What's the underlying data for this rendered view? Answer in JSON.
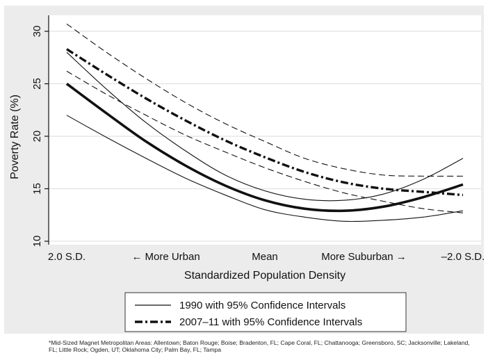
{
  "chart_data": {
    "type": "line",
    "xlabel": "Standardized Population Density",
    "ylabel": "Poverty Rate (%)",
    "x_tick_labels": [
      "2.0 S.D.",
      "← More Urban",
      "Mean",
      "More Suburban →",
      "–2.0 S.D."
    ],
    "x_tick_values": [
      2.0,
      1.0,
      0.0,
      -1.0,
      -2.0
    ],
    "xlim": [
      2.0,
      -2.0
    ],
    "ylim": [
      10,
      30
    ],
    "y_ticks": [
      10,
      15,
      20,
      25,
      30
    ],
    "grid": "horizontal",
    "x": [
      2.0,
      1.6,
      1.2,
      0.8,
      0.4,
      0.0,
      -0.4,
      -0.8,
      -1.2,
      -1.6,
      -2.0
    ],
    "series": [
      {
        "name": "1990 with 95% Confidence Intervals",
        "values": [
          25.0,
          22.2,
          19.5,
          17.2,
          15.3,
          13.9,
          13.1,
          12.9,
          13.3,
          14.2,
          15.4
        ],
        "style": "solid-thick"
      },
      {
        "values": [
          22.0,
          19.9,
          17.9,
          16.0,
          14.4,
          13.0,
          12.3,
          11.9,
          12.0,
          12.3,
          12.9
        ],
        "style": "solid-thin"
      },
      {
        "values": [
          28.0,
          24.5,
          21.3,
          18.6,
          16.3,
          14.8,
          14.0,
          13.9,
          14.5,
          15.9,
          17.9
        ],
        "style": "solid-thin"
      },
      {
        "name": "2007–11 with 95% Confidence Intervals",
        "values": [
          28.3,
          25.9,
          23.6,
          21.5,
          19.6,
          18.0,
          16.6,
          15.6,
          15.0,
          14.7,
          14.4
        ],
        "style": "dashdot-thick"
      },
      {
        "values": [
          26.2,
          24.0,
          22.0,
          20.1,
          18.5,
          17.0,
          15.7,
          14.6,
          13.8,
          13.1,
          12.7
        ],
        "style": "dashed-thin"
      },
      {
        "values": [
          30.7,
          28.0,
          25.5,
          23.2,
          21.2,
          19.5,
          17.9,
          16.9,
          16.3,
          16.2,
          16.2
        ],
        "style": "dashed-thin"
      }
    ],
    "legend": {
      "placement": "bottom",
      "entries": [
        {
          "label": "1990 with 95% Confidence Intervals",
          "style": "solid-thin"
        },
        {
          "label": "2007–11 with 95% Confidence Intervals",
          "style": "dashdot-thick"
        }
      ]
    },
    "footnote": "*Mid-Sized Magnet Metropolitan Areas: Allentown; Baton Rouge; Boise; Bradenton, FL; Cape Coral, FL; Chattanooga; Greensboro, SC; Jacksonville; Lakeland, FL; Little Rock; Ogden, UT; Oklahoma City; Palm Bay, FL; Tampa",
    "colors": {
      "background": "#ececec",
      "plot": "#ffffff",
      "line": "#111111",
      "grid": "#e2e2e2"
    }
  }
}
